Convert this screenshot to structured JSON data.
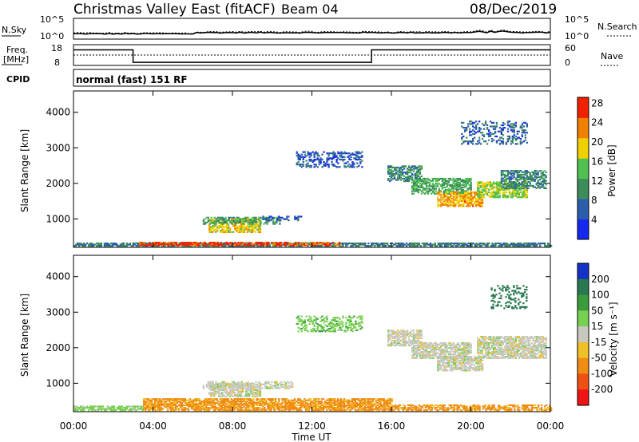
{
  "header": {
    "station": "Christmas Valley East (fitACF)",
    "beam": "Beam 04",
    "date": "08/Dec/2019"
  },
  "noise_panel": {
    "left_label": "N.Sky",
    "right_label": "N.Search",
    "left_ticks": [
      "10^5",
      "10^0"
    ],
    "right_ticks": [
      "10^5",
      "10^0"
    ]
  },
  "freq_panel": {
    "left_label_1": "Freq.",
    "left_label_2": "[MHz]",
    "right_label": "Nave",
    "left_ticks": [
      "18",
      "8"
    ],
    "right_ticks": [
      "60",
      "0"
    ],
    "freq_steps": [
      {
        "from_h": 0,
        "to_h": 3,
        "mhz": 15.5
      },
      {
        "from_h": 3,
        "to_h": 15,
        "mhz": 9.5
      },
      {
        "from_h": 15,
        "to_h": 24,
        "mhz": 15.5
      }
    ],
    "freq_range": [
      8,
      18
    ],
    "nave_range": [
      0,
      60
    ],
    "nave_value": 30
  },
  "cpid": {
    "label": "CPID",
    "text": "normal (fast) 151 RF"
  },
  "axes": {
    "ylabel": "Slant Range [km]",
    "xlabel": "Time UT",
    "y_ticks": [
      "1000",
      "2000",
      "3000",
      "4000"
    ],
    "x_ticks": [
      "00:00",
      "04:00",
      "08:00",
      "12:00",
      "16:00",
      "20:00",
      "00:00"
    ]
  },
  "power_colorbar": {
    "label": "Power [dB]",
    "ticks": [
      "4",
      "8",
      "12",
      "16",
      "20",
      "24",
      "28"
    ],
    "colors": [
      "#1428f0",
      "#2c5cac",
      "#3c8c5c",
      "#50c050",
      "#f0d000",
      "#f08000",
      "#f02000"
    ]
  },
  "velocity_colorbar": {
    "label": "Velocity [m s⁻¹]",
    "ticks": [
      "200",
      "100",
      "50",
      "15",
      "-15",
      "-50",
      "-100",
      "-200"
    ],
    "colors": [
      "#1432c8",
      "#287850",
      "#3c9c3c",
      "#78d050",
      "#c8c8c0",
      "#f0c028",
      "#f08c14",
      "#f05014",
      "#f01414"
    ]
  },
  "chart_data": [
    {
      "type": "heatmap",
      "title": "Power [dB]",
      "xlabel": "Time UT",
      "ylabel": "Slant Range [km]",
      "xlim_hours": [
        0,
        24
      ],
      "ylim_km": [
        200,
        4600
      ],
      "value_range": [
        0,
        30
      ],
      "regions": [
        {
          "t0": 0.0,
          "t1": 24.0,
          "r0": 230,
          "r1": 330,
          "value": 9,
          "density": 0.75
        },
        {
          "t0": 3.3,
          "t1": 11.5,
          "r0": 250,
          "r1": 340,
          "value": 27,
          "density": 0.7
        },
        {
          "t0": 11.5,
          "t1": 13.5,
          "r0": 250,
          "r1": 330,
          "value": 24,
          "density": 0.6
        },
        {
          "t0": 6.8,
          "t1": 9.4,
          "r0": 620,
          "r1": 1000,
          "value": 19,
          "density": 0.65
        },
        {
          "t0": 6.5,
          "t1": 10.5,
          "r0": 850,
          "r1": 1050,
          "value": 12,
          "density": 0.5
        },
        {
          "t0": 9.5,
          "t1": 11.5,
          "r0": 950,
          "r1": 1080,
          "value": 6,
          "density": 0.45
        },
        {
          "t0": 11.2,
          "t1": 14.5,
          "r0": 2450,
          "r1": 2900,
          "value": 6,
          "density": 0.35
        },
        {
          "t0": 15.8,
          "t1": 17.5,
          "r0": 2050,
          "r1": 2500,
          "value": 10,
          "density": 0.6
        },
        {
          "t0": 17.0,
          "t1": 20.0,
          "r0": 1700,
          "r1": 2150,
          "value": 13,
          "density": 0.6
        },
        {
          "t0": 18.3,
          "t1": 20.6,
          "r0": 1350,
          "r1": 1750,
          "value": 22,
          "density": 0.7
        },
        {
          "t0": 20.3,
          "t1": 22.8,
          "r0": 1600,
          "r1": 2050,
          "value": 17,
          "density": 0.65
        },
        {
          "t0": 21.5,
          "t1": 23.8,
          "r0": 1850,
          "r1": 2350,
          "value": 10,
          "density": 0.6
        },
        {
          "t0": 19.5,
          "t1": 22.8,
          "r0": 3100,
          "r1": 3750,
          "value": 7,
          "density": 0.3
        }
      ]
    },
    {
      "type": "heatmap",
      "title": "Velocity [m s⁻¹]",
      "xlabel": "Time UT",
      "ylabel": "Slant Range [km]",
      "xlim_hours": [
        0,
        24
      ],
      "ylim_km": [
        200,
        4600
      ],
      "value_range": [
        -200,
        200
      ],
      "regions": [
        {
          "t0": 0.0,
          "t1": 3.5,
          "r0": 230,
          "r1": 340,
          "value": 30,
          "density": 0.7
        },
        {
          "t0": 3.5,
          "t1": 16.0,
          "r0": 230,
          "r1": 560,
          "value": -60,
          "density": 0.75
        },
        {
          "t0": 16.0,
          "t1": 24.0,
          "r0": 230,
          "r1": 380,
          "value": -60,
          "density": 0.6
        },
        {
          "t0": 6.8,
          "t1": 9.4,
          "r0": 620,
          "r1": 1000,
          "value": 0,
          "density": 0.7
        },
        {
          "t0": 6.5,
          "t1": 11.0,
          "r0": 850,
          "r1": 1050,
          "value": 0,
          "density": 0.45
        },
        {
          "t0": 11.2,
          "t1": 14.5,
          "r0": 2450,
          "r1": 2900,
          "value": 40,
          "density": 0.35
        },
        {
          "t0": 15.8,
          "t1": 17.5,
          "r0": 2050,
          "r1": 2500,
          "value": 0,
          "density": 0.65
        },
        {
          "t0": 17.0,
          "t1": 20.0,
          "r0": 1700,
          "r1": 2150,
          "value": 0,
          "density": 0.7
        },
        {
          "t0": 18.3,
          "t1": 20.6,
          "r0": 1350,
          "r1": 1750,
          "value": 0,
          "density": 0.7
        },
        {
          "t0": 20.3,
          "t1": 23.8,
          "r0": 1700,
          "r1": 2300,
          "value": 0,
          "density": 0.7
        },
        {
          "t0": 21.0,
          "t1": 22.8,
          "r0": 3100,
          "r1": 3750,
          "value": 150,
          "density": 0.3
        }
      ]
    }
  ]
}
